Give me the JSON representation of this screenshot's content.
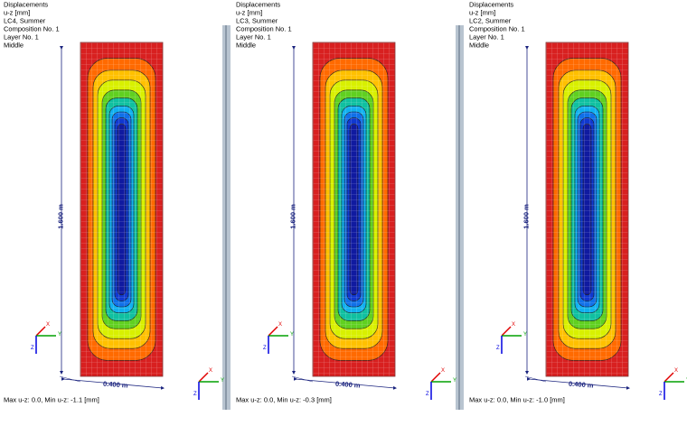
{
  "panels": [
    {
      "lines": [
        "Displacements",
        "u-z [mm]",
        "LC4, Summer",
        "Composition No. 1",
        "Layer No. 1",
        "Middle"
      ],
      "height_label": "1.600 m",
      "width_label": "0.400 m",
      "footer": "Max u-z: 0.0, Min u-z: -1.1 [mm]",
      "axes": {
        "x": "X",
        "y": "Y",
        "z": "Z"
      }
    },
    {
      "lines": [
        "Displacements",
        "u-z [mm]",
        "LC3, Summer",
        "Composition No. 1",
        "Layer No. 1",
        "Middle"
      ],
      "height_label": "1.600 m",
      "width_label": "0.400 m",
      "footer": "Max u-z: 0.0, Min u-z: -0.3 [mm]",
      "axes": {
        "x": "X",
        "y": "Y",
        "z": "Z"
      }
    },
    {
      "lines": [
        "Displacements",
        "u-z [mm]",
        "LC2, Summer",
        "Composition No. 1",
        "Layer No. 1",
        "Middle"
      ],
      "height_label": "1.600 m",
      "width_label": "0.400 m",
      "footer": "Max u-z: 0.0, Min u-z: -1.0 [mm]",
      "axes": {
        "x": "X",
        "y": "Y",
        "z": "Z"
      }
    }
  ]
}
